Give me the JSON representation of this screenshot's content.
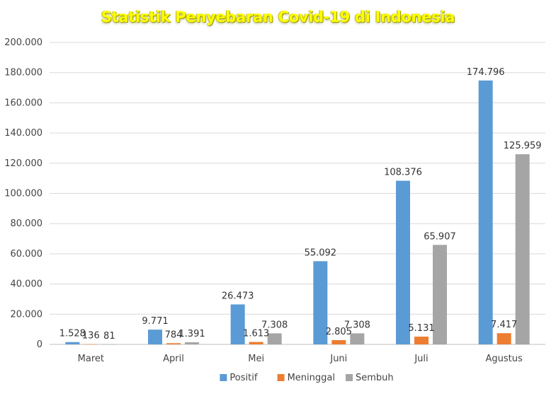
{
  "chart_data": {
    "type": "bar",
    "title": "Statistik Penyebaran Covid-19 di Indonesia",
    "categories": [
      "Maret",
      "April",
      "Mei",
      "Juni",
      "Juli",
      "Agustus"
    ],
    "series": [
      {
        "name": "Positif",
        "color": "#5b9bd5",
        "values": [
          1528,
          9771,
          26473,
          55092,
          108376,
          174796
        ],
        "labels": [
          "1.528",
          "9.771",
          "26.473",
          "55.092",
          "108.376",
          "174.796"
        ]
      },
      {
        "name": "Meninggal",
        "color": "#ed7d31",
        "values": [
          136,
          784,
          1613,
          2805,
          5131,
          7417
        ],
        "labels": [
          "136",
          "784",
          "1.613",
          "2.805",
          "5.131",
          "7.417"
        ]
      },
      {
        "name": "Sembuh",
        "color": "#a5a5a5",
        "values": [
          81,
          1391,
          7308,
          7308,
          65907,
          125959
        ],
        "labels": [
          "81",
          "1.391",
          "7.308",
          "7.308",
          "65.907",
          "125.959"
        ]
      }
    ],
    "ylim": [
      0,
      200000
    ],
    "yticks": [
      0,
      20000,
      40000,
      60000,
      80000,
      100000,
      120000,
      140000,
      160000,
      180000,
      200000
    ],
    "ytick_labels": [
      "0",
      "20.000",
      "40.000",
      "60.000",
      "80.000",
      "100.000",
      "120.000",
      "140.000",
      "160.000",
      "180.000",
      "200.000"
    ],
    "grid": true,
    "legend": "bottom",
    "xlabel": "",
    "ylabel": ""
  }
}
